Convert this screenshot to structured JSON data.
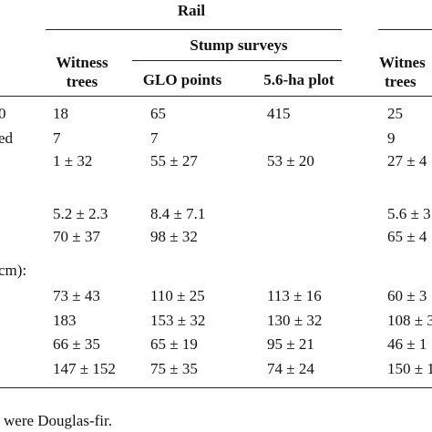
{
  "table": {
    "group_header": "Rail",
    "subgroup_header": "Stump surveys",
    "columns": [
      {
        "line1": "Witness",
        "line2": "trees"
      },
      {
        "line1": "GLO points"
      },
      {
        "line1": "5.6-ha plot"
      },
      {
        "line1": "Witnes",
        "line2": "trees"
      }
    ],
    "rows": [
      {
        "label": "0",
        "cells": [
          "18",
          "65",
          "415",
          "25"
        ]
      },
      {
        "label": "ed",
        "cells": [
          "7",
          "7",
          null,
          "9"
        ]
      },
      {
        "cells": [
          "1 ± 32",
          "55 ± 27",
          "53 ± 20",
          "27 ± 4"
        ]
      },
      {
        "cells": [
          "5.2 ± 2.3",
          "8.4 ± 7.1",
          null,
          "5.6 ± 3"
        ]
      },
      {
        "cells": [
          "70 ± 37",
          "98 ± 32",
          null,
          "65 ± 4"
        ]
      },
      {
        "label": "cm):"
      },
      {
        "cells": [
          "73 ± 43",
          "110 ± 25",
          "113 ± 16",
          "60 ± 3"
        ]
      },
      {
        "cells": [
          "183",
          "153 ± 32",
          "130 ± 32",
          "108 ± 3"
        ]
      },
      {
        "cells": [
          "66 ± 35",
          "65 ± 19",
          "95 ± 21",
          "46 ± 1"
        ]
      },
      {
        "cells": [
          "147 ± 152",
          "75 ± 35",
          "74 ± 24",
          "150 ± 1"
        ]
      }
    ],
    "footnote": "were Douglas-fir."
  }
}
